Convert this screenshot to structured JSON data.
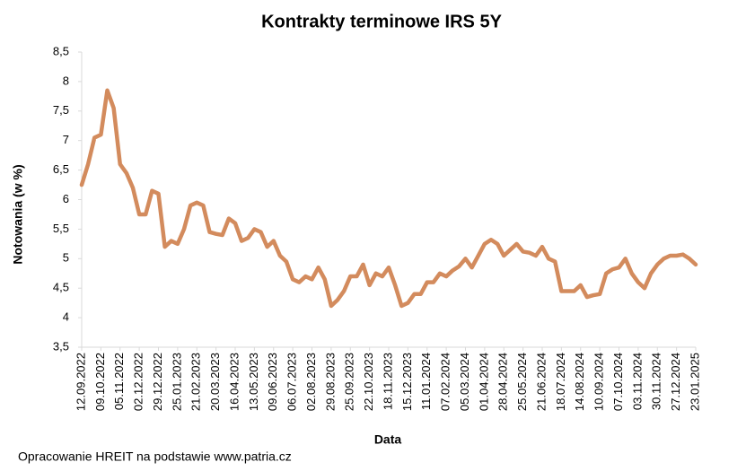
{
  "chart_data": {
    "type": "line",
    "title": "Kontrakty terminowe IRS 5Y",
    "x_label": "Data",
    "y_label": "Notowania (w %)",
    "note": "Opracowanie HREIT na podstawie www.patria.cz",
    "categories": [
      "12.09.2022",
      null,
      null,
      "09.10.2022",
      null,
      null,
      "05.11.2022",
      null,
      null,
      "02.12.2022",
      null,
      null,
      "29.12.2022",
      null,
      null,
      "25.01.2023",
      null,
      null,
      "21.02.2023",
      null,
      null,
      "20.03.2023",
      null,
      null,
      "16.04.2023",
      null,
      null,
      "13.05.2023",
      null,
      null,
      "09.06.2023",
      null,
      null,
      "06.07.2023",
      null,
      null,
      "02.08.2023",
      null,
      null,
      "29.08.2023",
      null,
      null,
      "25.09.2023",
      null,
      null,
      "22.10.2023",
      null,
      null,
      "18.11.2023",
      null,
      null,
      "15.12.2023",
      null,
      null,
      "11.01.2024",
      null,
      null,
      "07.02.2024",
      null,
      null,
      "05.03.2024",
      null,
      null,
      "01.04.2024",
      null,
      null,
      "28.04.2024",
      null,
      null,
      "25.05.2024",
      null,
      null,
      "21.06.2024",
      null,
      null,
      "18.07.2024",
      null,
      null,
      "14.08.2024",
      null,
      null,
      "10.09.2024",
      null,
      null,
      "07.10.2024",
      null,
      null,
      "03.11.2024",
      null,
      null,
      "30.11.2024",
      null,
      null,
      "27.12.2024",
      null,
      null,
      "23.01.2025"
    ],
    "series": [
      {
        "name": "IRS 5Y",
        "color": "#d38b5d",
        "values": [
          6.25,
          6.6,
          7.05,
          7.1,
          7.85,
          7.55,
          6.6,
          6.45,
          6.2,
          5.75,
          5.75,
          6.15,
          6.1,
          5.2,
          5.3,
          5.25,
          5.5,
          5.9,
          5.95,
          5.9,
          5.45,
          5.42,
          5.4,
          5.68,
          5.6,
          5.3,
          5.35,
          5.5,
          5.45,
          5.2,
          5.3,
          5.05,
          4.95,
          4.65,
          4.6,
          4.7,
          4.65,
          4.85,
          4.65,
          4.2,
          4.3,
          4.45,
          4.7,
          4.7,
          4.9,
          4.55,
          4.75,
          4.7,
          4.85,
          4.55,
          4.2,
          4.25,
          4.4,
          4.4,
          4.6,
          4.6,
          4.75,
          4.7,
          4.8,
          4.87,
          5.0,
          4.85,
          5.05,
          5.25,
          5.32,
          5.25,
          5.05,
          5.15,
          5.25,
          5.12,
          5.1,
          5.05,
          5.2,
          5.0,
          4.95,
          4.45,
          4.45,
          4.45,
          4.55,
          4.35,
          4.38,
          4.4,
          4.75,
          4.82,
          4.85,
          5.0,
          4.75,
          4.6,
          4.5,
          4.75,
          4.9,
          5.0,
          5.05,
          5.05,
          5.07,
          5.0,
          4.9
        ]
      }
    ],
    "ylim": [
      3.5,
      8.5
    ],
    "yticks": [
      {
        "value": 3.5,
        "label": "3,5"
      },
      4,
      {
        "value": 4.5,
        "label": "4,5"
      },
      5,
      {
        "value": 5.5,
        "label": "5,5"
      },
      6,
      {
        "value": 6.5,
        "label": "6,5"
      },
      7,
      {
        "value": 7.5,
        "label": "7,5"
      },
      8,
      {
        "value": 8.5,
        "label": "8,5"
      }
    ],
    "grid": false
  }
}
